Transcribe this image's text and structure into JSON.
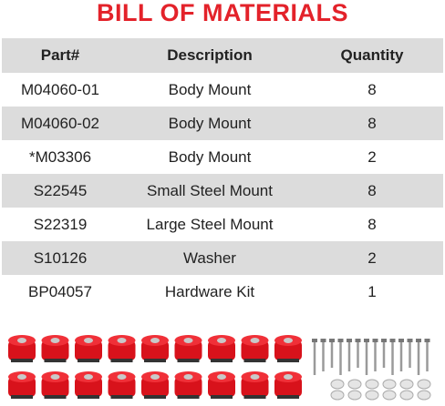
{
  "header": {
    "title": "BILL OF MATERIALS"
  },
  "table": {
    "columns": [
      "Part#",
      "Description",
      "Quantity"
    ],
    "rows": [
      [
        "M04060-01",
        "Body Mount",
        8
      ],
      [
        "M04060-02",
        "Body Mount",
        8
      ],
      [
        "*M03306",
        "Body Mount",
        2
      ],
      [
        "S22545",
        "Small Steel Mount",
        8
      ],
      [
        "S22319",
        "Large Steel Mount",
        8
      ],
      [
        "S10126",
        "Washer",
        2
      ],
      [
        "BP04057",
        "Hardware Kit",
        1
      ]
    ]
  }
}
